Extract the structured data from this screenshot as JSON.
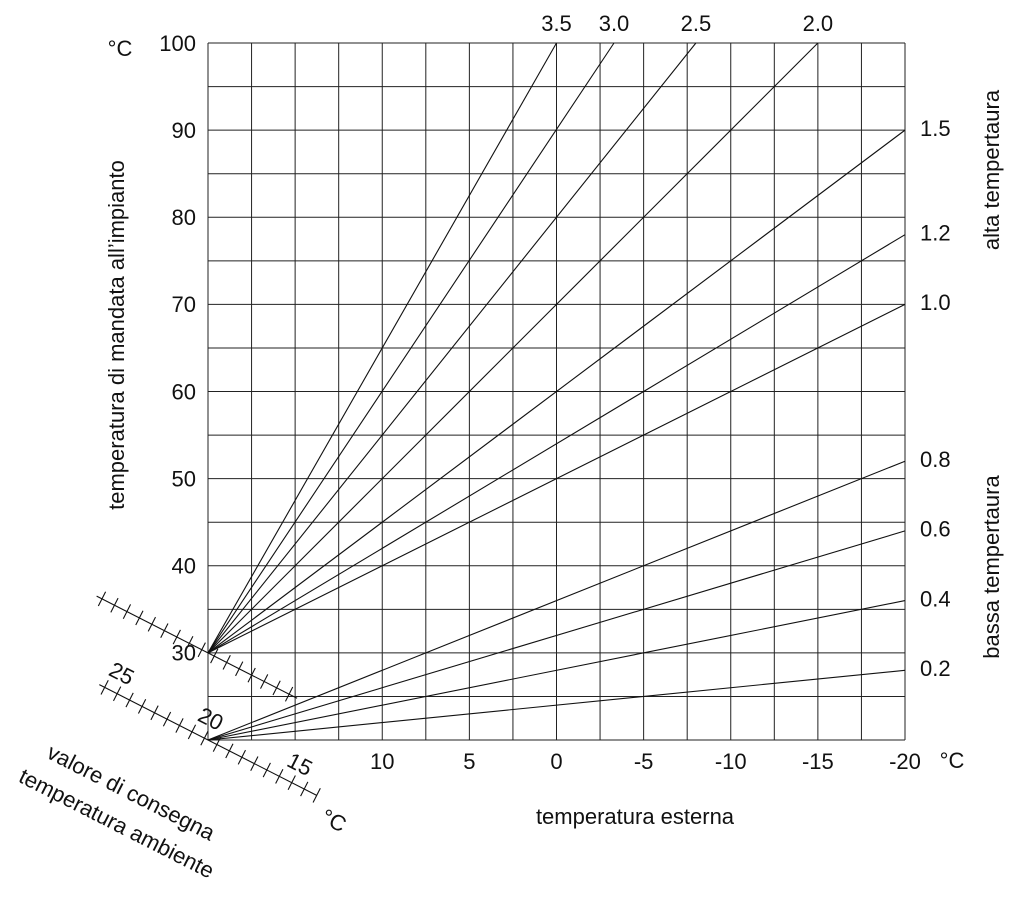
{
  "chart_data": {
    "type": "line",
    "y_label": "temperatura di mandata all’impianto",
    "y_unit": "°C",
    "x_label": "temperatura esterna",
    "x_unit": "°C",
    "high_label": "alta tempertaura",
    "low_label": "bassa tempertaura",
    "xlim": [
      20,
      -20
    ],
    "ylim": [
      20,
      100
    ],
    "xticks": [
      10,
      5,
      0,
      -5,
      -10,
      -15,
      -20
    ],
    "yticks": [
      30,
      40,
      50,
      60,
      70,
      80,
      90,
      100
    ],
    "xgrid": [
      20,
      17.5,
      15,
      12.5,
      10,
      7.5,
      5,
      2.5,
      0,
      -2.5,
      -5,
      -7.5,
      -10,
      -12.5,
      -15,
      -17.5,
      -20
    ],
    "ygrid": [
      20,
      25,
      30,
      35,
      40,
      45,
      50,
      55,
      60,
      65,
      70,
      75,
      80,
      85,
      90,
      95,
      100
    ],
    "color": "#111111",
    "series": [
      {
        "name": "3.5",
        "x": [
          20,
          0
        ],
        "values": [
          30,
          100
        ]
      },
      {
        "name": "3.0",
        "x": [
          20,
          -3.3
        ],
        "values": [
          30,
          100
        ]
      },
      {
        "name": "2.5",
        "x": [
          20,
          -8
        ],
        "values": [
          30,
          100
        ]
      },
      {
        "name": "2.0",
        "x": [
          20,
          -15
        ],
        "values": [
          30,
          100
        ]
      },
      {
        "name": "1.5",
        "x": [
          20,
          -20
        ],
        "values": [
          30,
          90
        ]
      },
      {
        "name": "1.2",
        "x": [
          20,
          -20
        ],
        "values": [
          30,
          78
        ]
      },
      {
        "name": "1.0",
        "x": [
          20,
          -20
        ],
        "values": [
          30,
          70
        ]
      },
      {
        "name": "0.8",
        "x": [
          20,
          -20
        ],
        "values": [
          20,
          52
        ]
      },
      {
        "name": "0.6",
        "x": [
          20,
          -20
        ],
        "values": [
          20,
          44
        ]
      },
      {
        "name": "0.4",
        "x": [
          20,
          -20
        ],
        "values": [
          20,
          36
        ]
      },
      {
        "name": "0.2",
        "x": [
          20,
          -20
        ],
        "values": [
          20,
          28
        ]
      }
    ],
    "setpoint_scale": {
      "title": [
        "valore di consegna",
        "temperatura ambiente"
      ],
      "ticks": [
        25,
        20,
        15
      ],
      "unit": "°C"
    }
  }
}
